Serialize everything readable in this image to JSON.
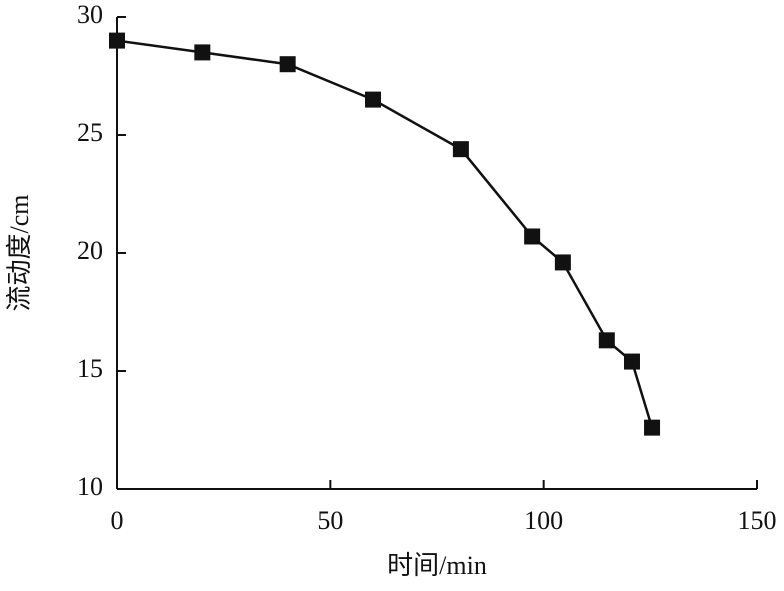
{
  "chart_data": {
    "type": "line",
    "x_label": "时间/min",
    "y_label": "流动度/cm",
    "x": [
      0,
      20,
      40,
      60,
      80.6,
      97.3,
      104.5,
      114.8,
      120.7,
      125.4
    ],
    "series": [
      {
        "name": "流动度",
        "color": "#111111",
        "values": [
          29.0,
          28.5,
          28.0,
          26.5,
          24.4,
          20.7,
          19.6,
          16.3,
          15.4,
          12.6
        ]
      }
    ],
    "xlim": [
      0,
      150
    ],
    "xticks": [
      0,
      50,
      100,
      150
    ],
    "ylim": [
      10,
      30
    ],
    "yticks": [
      10,
      15,
      20,
      25,
      30
    ]
  }
}
